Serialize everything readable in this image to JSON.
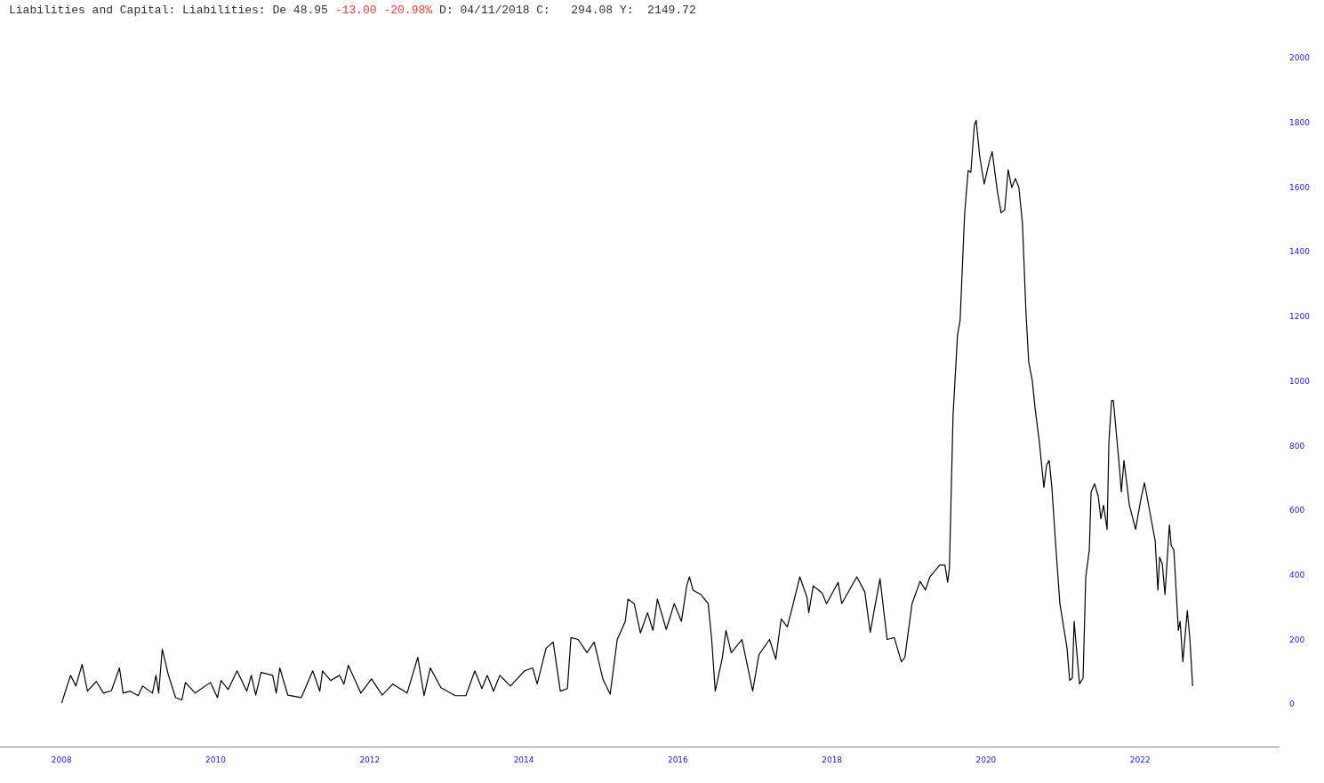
{
  "chart_data": {
    "type": "line",
    "title": "Liabilities and Capital: Liabilities: De 48.95",
    "subtitle": "-13.00 -20.98%",
    "annotations": [
      "D: 04/11/2018 C:   294.08 Y:  2149.72"
    ],
    "x": [
      2008.0,
      2008.116,
      2008.185,
      2008.266,
      2008.335,
      2008.451,
      2008.543,
      2008.647,
      2008.751,
      2008.798,
      2008.89,
      2008.994,
      2009.052,
      2009.179,
      2009.225,
      2009.26,
      2009.306,
      2009.387,
      2009.48,
      2009.561,
      2009.607,
      2009.734,
      2009.931,
      2010.023,
      2010.069,
      2010.162,
      2010.277,
      2010.404,
      2010.462,
      2010.52,
      2010.589,
      2010.74,
      2010.786,
      2010.832,
      2010.936,
      2011.11,
      2011.26,
      2011.352,
      2011.387,
      2011.491,
      2011.607,
      2011.665,
      2011.722,
      2011.884,
      2012.023,
      2012.162,
      2012.3,
      2012.485,
      2012.624,
      2012.705,
      2012.786,
      2012.924,
      2013.11,
      2013.248,
      2013.364,
      2013.456,
      2013.526,
      2013.607,
      2013.688,
      2013.826,
      2014.011,
      2014.115,
      2014.173,
      2014.289,
      2014.381,
      2014.474,
      2014.566,
      2014.612,
      2014.705,
      2014.82,
      2014.913,
      2015.028,
      2015.121,
      2015.213,
      2015.317,
      2015.352,
      2015.433,
      2015.514,
      2015.606,
      2015.676,
      2015.734,
      2015.849,
      2015.953,
      2016.046,
      2016.115,
      2016.15,
      2016.196,
      2016.3,
      2016.393,
      2016.439,
      2016.485,
      2016.578,
      2016.624,
      2016.693,
      2016.832,
      2016.971,
      2017.052,
      2017.19,
      2017.271,
      2017.341,
      2017.421,
      2017.491,
      2017.583,
      2017.676,
      2017.699,
      2017.757,
      2017.872,
      2017.93,
      2018.08,
      2018.127,
      2018.323,
      2018.427,
      2018.497,
      2018.543,
      2018.624,
      2018.716,
      2018.809,
      2018.901,
      2018.947,
      2019.04,
      2019.144,
      2019.214,
      2019.271,
      2019.398,
      2019.467,
      2019.502,
      2019.525,
      2019.572,
      2019.63,
      2019.664,
      2019.722,
      2019.768,
      2019.803,
      2019.849,
      2019.872,
      2019.918,
      2019.976,
      2020.045,
      2020.08,
      2020.149,
      2020.196,
      2020.242,
      2020.288,
      2020.334,
      2020.381,
      2020.427,
      2020.473,
      2020.519,
      2020.554,
      2020.6,
      2020.635,
      2020.693,
      2020.751,
      2020.786,
      2020.82,
      2020.855,
      2020.901,
      2020.959,
      2021.052,
      2021.086,
      2021.121,
      2021.144,
      2021.214,
      2021.26,
      2021.295,
      2021.341,
      2021.364,
      2021.41,
      2021.457,
      2021.491,
      2021.526,
      2021.572,
      2021.595,
      2021.63,
      2021.653,
      2021.734,
      2021.757,
      2021.791,
      2021.861,
      2021.942,
      2021.988,
      2022.011,
      2022.057,
      2022.115,
      2022.196,
      2022.231,
      2022.254,
      2022.289,
      2022.323,
      2022.381,
      2022.404,
      2022.439,
      2022.497,
      2022.52,
      2022.555,
      2022.613,
      2022.647,
      2022.682
    ],
    "series": [
      {
        "color": "#000000",
        "values": [
          5,
          91,
          58,
          125,
          42,
          72,
          36,
          44,
          114,
          36,
          42,
          28,
          58,
          36,
          91,
          36,
          172,
          91,
          22,
          15,
          69,
          36,
          69,
          22,
          75,
          47,
          105,
          42,
          91,
          30,
          100,
          91,
          36,
          114,
          30,
          22,
          105,
          42,
          105,
          75,
          91,
          64,
          122,
          36,
          80,
          30,
          64,
          36,
          147,
          28,
          114,
          53,
          28,
          28,
          105,
          50,
          91,
          42,
          91,
          58,
          105,
          114,
          64,
          175,
          194,
          42,
          50,
          208,
          202,
          161,
          194,
          78,
          33,
          202,
          258,
          327,
          313,
          222,
          285,
          230,
          327,
          233,
          313,
          258,
          368,
          396,
          355,
          341,
          313,
          202,
          42,
          147,
          230,
          161,
          202,
          42,
          155,
          202,
          141,
          266,
          241,
          307,
          396,
          332,
          285,
          368,
          346,
          313,
          379,
          313,
          396,
          349,
          224,
          285,
          390,
          202,
          208,
          133,
          147,
          313,
          382,
          355,
          396,
          432,
          432,
          379,
          424,
          895,
          1144,
          1191,
          1518,
          1654,
          1648,
          1795,
          1809,
          1698,
          1612,
          1684,
          1712,
          1587,
          1523,
          1532,
          1656,
          1601,
          1629,
          1601,
          1490,
          1213,
          1061,
          1005,
          922,
          812,
          673,
          742,
          756,
          673,
          507,
          313,
          175,
          75,
          83,
          258,
          64,
          83,
          396,
          479,
          659,
          684,
          645,
          576,
          618,
          543,
          812,
          942,
          942,
          729,
          659,
          756,
          618,
          543,
          607,
          637,
          687,
          612,
          507,
          355,
          457,
          435,
          341,
          557,
          493,
          479,
          230,
          258,
          133,
          291,
          202,
          58
        ]
      }
    ],
    "xlim": [
      2007.2,
      2023.8
    ],
    "xticks": [
      2008,
      2010,
      2012,
      2014,
      2016,
      2018,
      2020,
      2022
    ],
    "ylim": [
      -130,
      2000
    ],
    "yticks": [
      0,
      200,
      400,
      600,
      800,
      1000,
      1200,
      1400,
      1600,
      1800,
      2000
    ],
    "grid": false,
    "legend": false,
    "marker": "none",
    "line_style": "solid"
  }
}
